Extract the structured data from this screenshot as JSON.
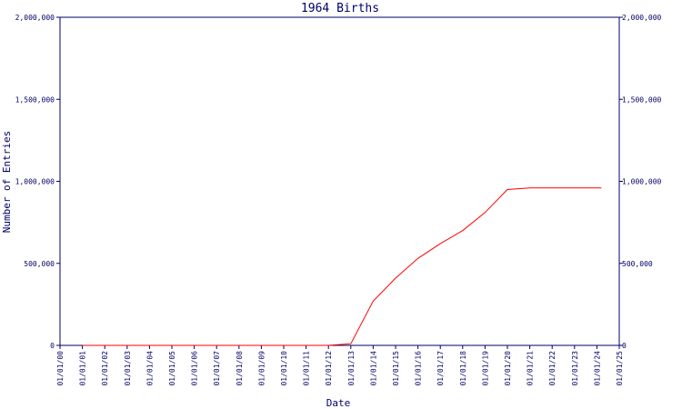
{
  "chart_data": {
    "type": "line",
    "title": "1964 Births",
    "xlabel": "Date",
    "ylabel": "Number of Entries",
    "x_ticks": [
      "01/01/00",
      "01/01/01",
      "01/01/02",
      "01/01/03",
      "01/01/04",
      "01/01/05",
      "01/01/06",
      "01/01/07",
      "01/01/08",
      "01/01/09",
      "01/01/10",
      "01/01/11",
      "01/01/12",
      "01/01/13",
      "01/01/14",
      "01/01/15",
      "01/01/16",
      "01/01/17",
      "01/01/18",
      "01/01/19",
      "01/01/20",
      "01/01/21",
      "01/01/22",
      "01/01/23",
      "01/01/24",
      "01/01/25"
    ],
    "y_ticks": [
      "0",
      "500,000",
      "1,000,000",
      "1,500,000",
      "2,000,000"
    ],
    "ylim": [
      0,
      2000000
    ],
    "grid": false,
    "series": [
      {
        "color": "#ff0000",
        "x": [
          "01/01/01",
          "01/01/12",
          "01/01/13",
          "01/01/14",
          "01/01/15",
          "01/01/16",
          "01/01/17",
          "01/01/18",
          "01/01/19",
          "01/01/20",
          "01/01/21",
          "01/01/22",
          "01/01/23",
          "01/01/24",
          "01/01/25"
        ],
        "values": [
          0,
          0,
          10000,
          270000,
          410000,
          530000,
          620000,
          700000,
          810000,
          950000,
          960000,
          960000,
          960000,
          960000,
          960000
        ]
      }
    ]
  },
  "colors": {
    "axis": "#000066",
    "series": "#ff0000"
  }
}
